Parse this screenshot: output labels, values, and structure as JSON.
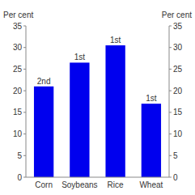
{
  "chart_data": {
    "type": "bar",
    "categories": [
      "Corn",
      "Soybeans",
      "Rice",
      "Wheat"
    ],
    "values": [
      21.0,
      26.5,
      30.5,
      17.0
    ],
    "annotations": [
      "2nd",
      "1st",
      "1st",
      "1st"
    ],
    "color": "#0000EE",
    "ylabel": "Per cent",
    "y2label": "Per cent",
    "ylim": [
      0,
      35
    ],
    "yticks": [
      0,
      5,
      10,
      15,
      20,
      25,
      30,
      35
    ],
    "y2lim": [
      0,
      35
    ],
    "y2ticks": [
      0,
      5,
      10,
      15,
      20,
      25,
      30,
      35
    ],
    "grid": false
  }
}
